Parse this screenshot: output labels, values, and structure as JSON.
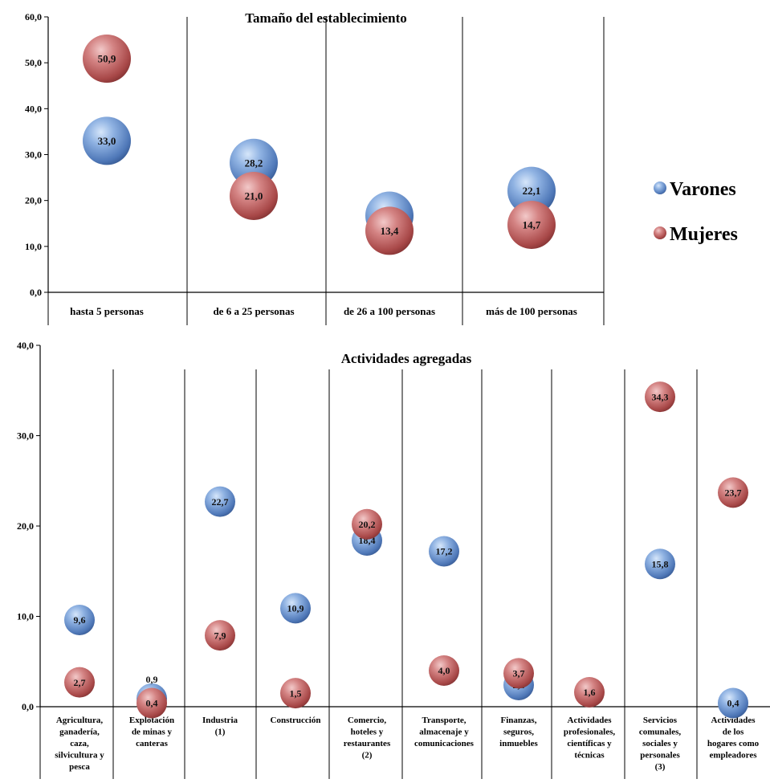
{
  "legend": {
    "varones": "Varones",
    "mujeres": "Mujeres",
    "varones_color": "#6f98d0",
    "mujeres_color": "#c86a6a"
  },
  "chart_data": [
    {
      "type": "scatter",
      "title": "Tamaño del establecimiento",
      "ylim": [
        0,
        60
      ],
      "yticks": [
        "0,0",
        "10,0",
        "20,0",
        "30,0",
        "40,0",
        "50,0",
        "60,0"
      ],
      "categories": [
        "hasta 5 personas",
        "de 6 a 25 personas",
        "de 26 a 100 personas",
        "más de 100 personas"
      ],
      "series": [
        {
          "name": "Varones",
          "values": [
            33.0,
            28.2,
            16.7,
            22.1
          ],
          "labels": [
            "33,0",
            "28,2",
            "16,7",
            "22,1"
          ]
        },
        {
          "name": "Mujeres",
          "values": [
            50.9,
            21.0,
            13.4,
            14.7
          ],
          "labels": [
            "50,9",
            "21,0",
            "13,4",
            "14,7"
          ]
        }
      ],
      "legend_position": "right"
    },
    {
      "type": "scatter",
      "title": "Actividades agregadas",
      "ylim": [
        0,
        40
      ],
      "yticks": [
        "0,0",
        "10,0",
        "20,0",
        "30,0",
        "40,0"
      ],
      "categories": [
        [
          "Agricultura,",
          "ganadería,",
          "caza,",
          "silvicultura y",
          "pesca"
        ],
        [
          "Explotación",
          "de minas y",
          "canteras"
        ],
        [
          "Industria",
          "(1)"
        ],
        [
          "Construcción"
        ],
        [
          "Comercio,",
          "hoteles y",
          "restaurantes",
          "(2)"
        ],
        [
          "Transporte,",
          "almacenaje y",
          "comunicaciones"
        ],
        [
          "Finanzas,",
          "seguros,",
          "inmuebles"
        ],
        [
          "Actividades",
          "profesionales,",
          "científicas y",
          "técnicas"
        ],
        [
          "Servicios",
          "comunales,",
          "sociales y",
          "personales",
          "(3)"
        ],
        [
          "Actividades",
          "de los",
          "hogares como",
          "empleadores"
        ]
      ],
      "series": [
        {
          "name": "Varones",
          "values": [
            9.6,
            0.9,
            22.7,
            10.9,
            18.4,
            17.2,
            2.4,
            null,
            15.8,
            0.4
          ],
          "labels": [
            "9,6",
            "0,9",
            "22,7",
            "10,9",
            "18,4",
            "17,2",
            "2,4",
            "",
            "15,8",
            "0,4"
          ]
        },
        {
          "name": "Mujeres",
          "values": [
            2.7,
            0.4,
            7.9,
            1.5,
            20.2,
            4.0,
            3.7,
            1.6,
            34.3,
            23.7
          ],
          "labels": [
            "2,7",
            "0,4",
            "7,9",
            "1,5",
            "20,2",
            "4,0",
            "3,7",
            "1,6",
            "34,3",
            "23,7"
          ]
        }
      ]
    }
  ]
}
